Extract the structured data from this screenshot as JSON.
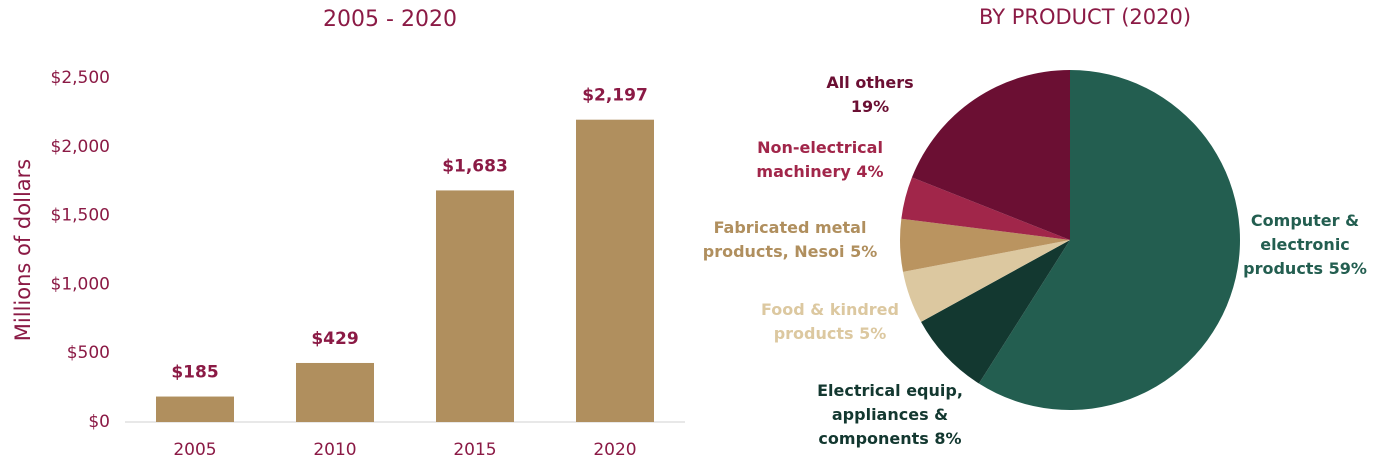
{
  "chart_data": [
    {
      "type": "bar",
      "title": "2005 - 2020",
      "ylabel": "Millions of dollars",
      "categories": [
        "2005",
        "2010",
        "2015",
        "2020"
      ],
      "values": [
        185,
        429,
        1683,
        2197
      ],
      "value_labels": [
        "$185",
        "$429",
        "$1,683",
        "$2,197"
      ],
      "color": "#b08f5e",
      "ylim": [
        0,
        2500
      ],
      "yticks": [
        {
          "value": 0,
          "label": "$0"
        },
        {
          "value": 500,
          "label": "$500"
        },
        {
          "value": 1000,
          "label": "$1,000"
        },
        {
          "value": 1500,
          "label": "$1,500"
        },
        {
          "value": 2000,
          "label": "$2,000"
        },
        {
          "value": 2500,
          "label": "$2,500"
        }
      ],
      "grid": false
    },
    {
      "type": "pie",
      "title": "BY PRODUCT (2020)",
      "categories": [
        "Computer & electronic products",
        "Electrical equip, appliances & components",
        "Food & kindred products",
        "Fabricated metal products, Nesoi",
        "Non-electrical machinery",
        "All others"
      ],
      "values": [
        59,
        8,
        5,
        5,
        4,
        19
      ],
      "value_labels": [
        "59%",
        "8%",
        "5%",
        "5%",
        "4%",
        "19%"
      ],
      "colors": [
        "#235e50",
        "#133830",
        "#dcc8a0",
        "#ba9460",
        "#a1264a",
        "#6b0f33"
      ],
      "label_colors": [
        "#235e50",
        "#133830",
        "#dcc8a0",
        "#b08f5e",
        "#a1264a",
        "#6b0f33"
      ]
    }
  ]
}
